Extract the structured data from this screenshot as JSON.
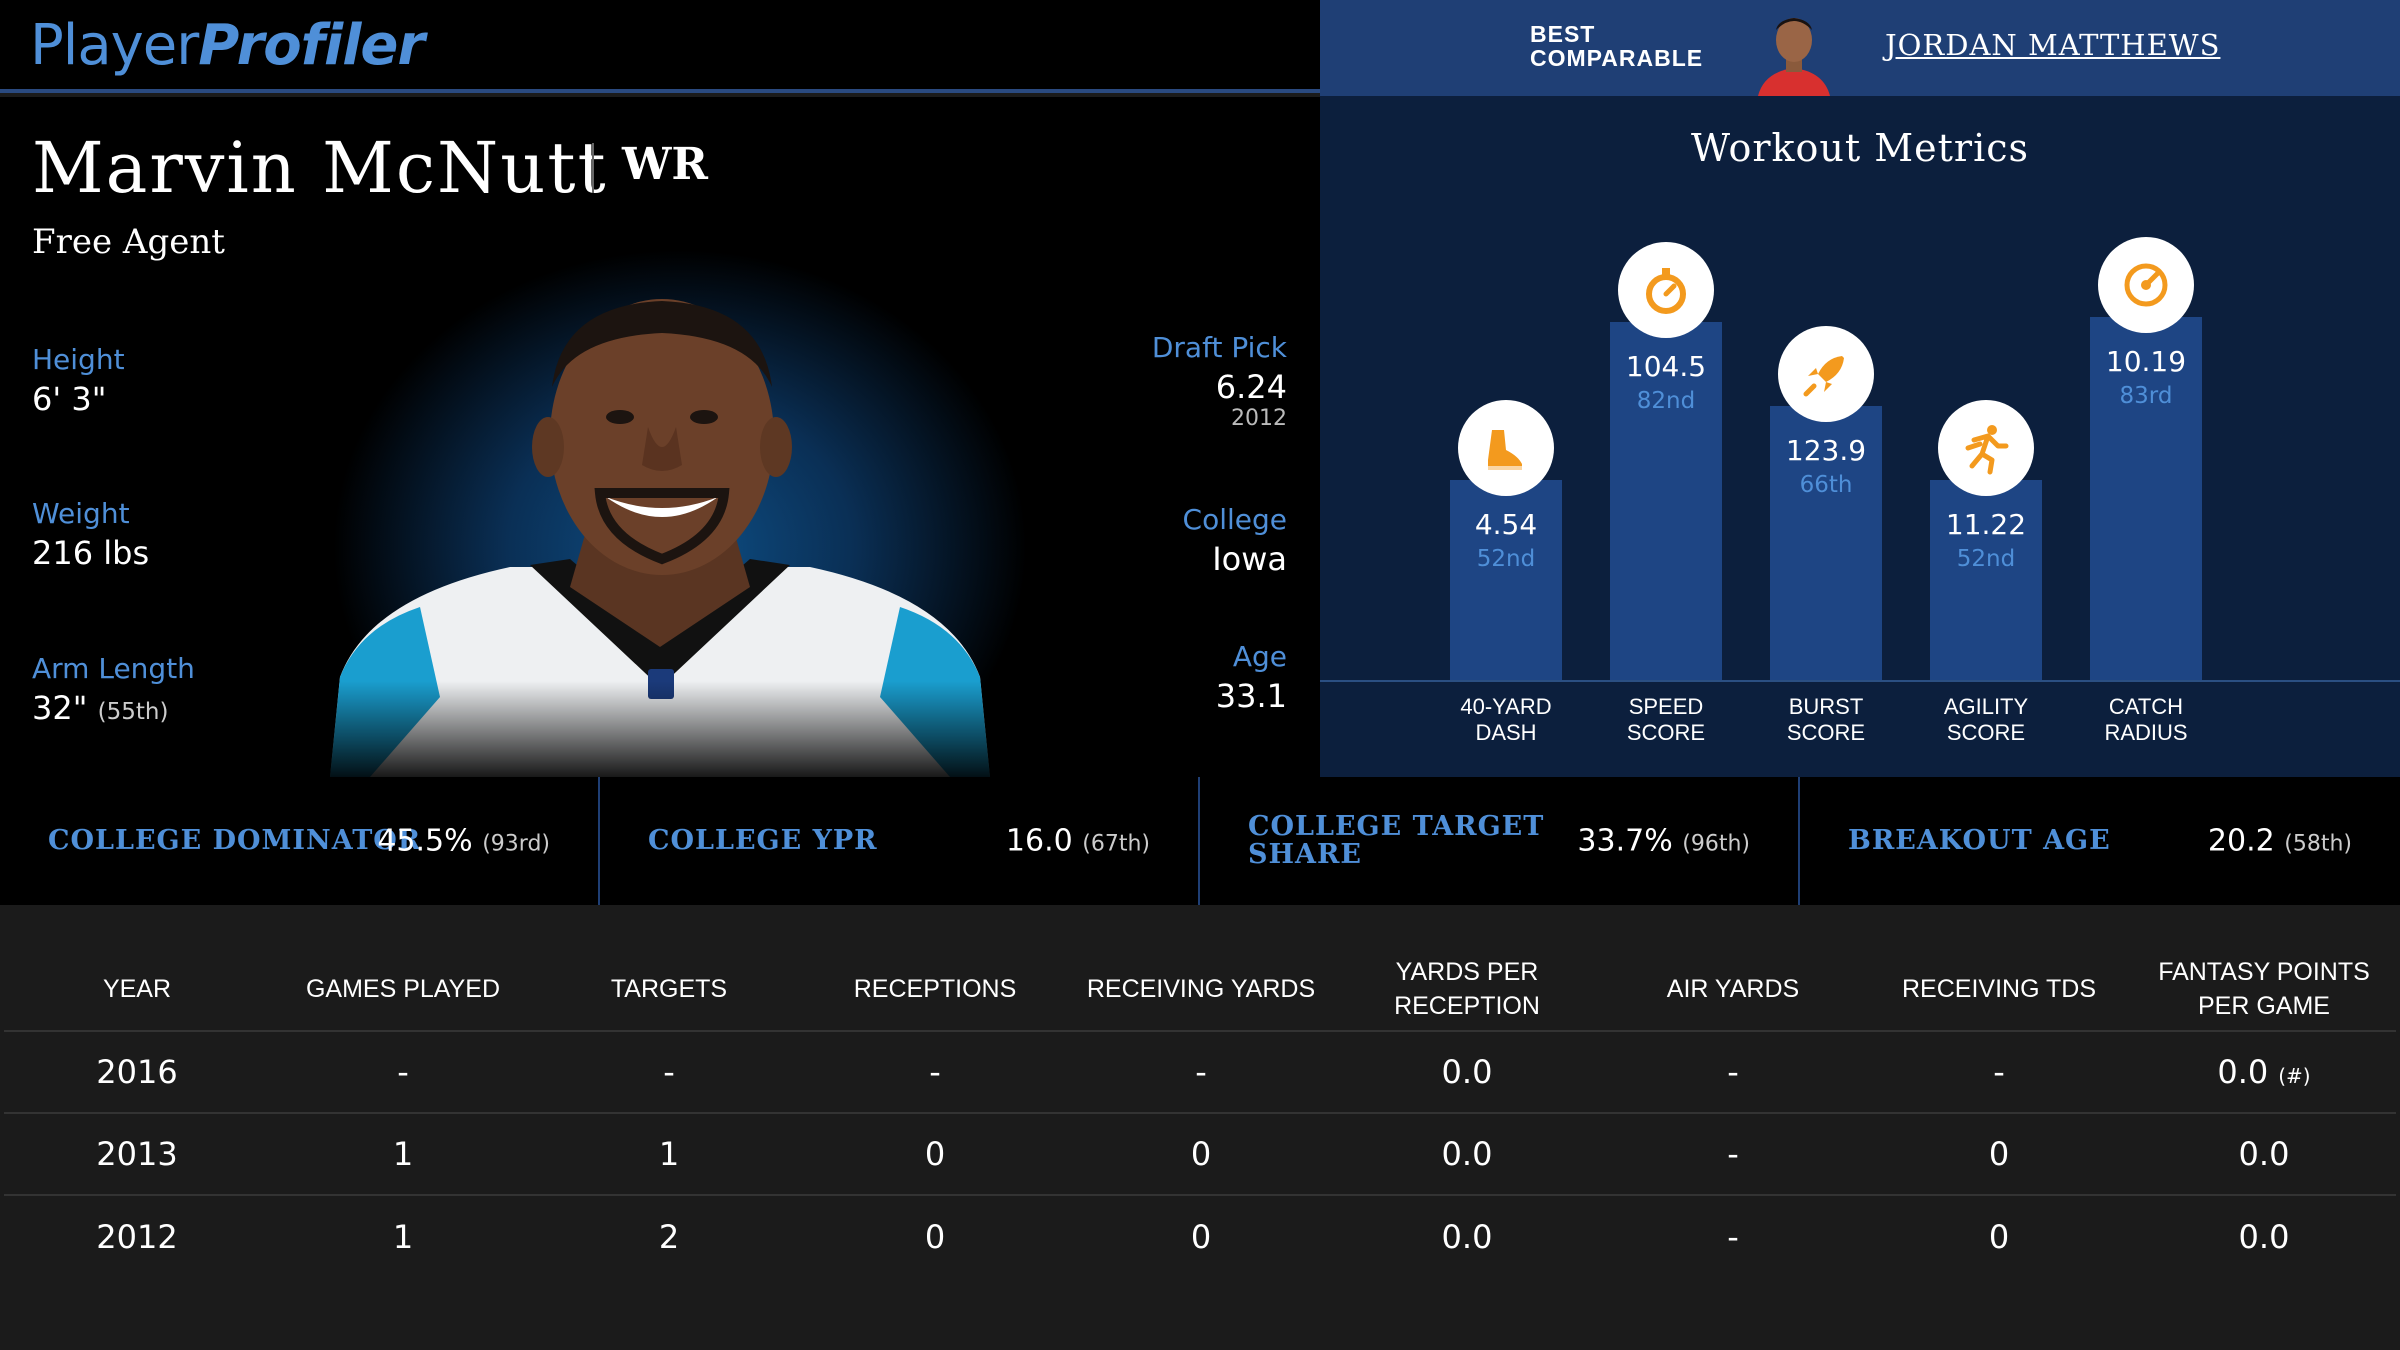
{
  "header": {
    "logo_part1": "Player",
    "logo_part2": "Profiler",
    "comparable_label_line1": "BEST",
    "comparable_label_line2": "COMPARABLE",
    "comparable_name": "JORDAN MATTHEWS"
  },
  "player": {
    "name": "Marvin McNutt",
    "position": "WR",
    "team": "Free Agent",
    "height_label": "Height",
    "height": "6' 3\"",
    "weight_label": "Weight",
    "weight": "216 lbs",
    "arm_label": "Arm Length",
    "arm": "32\"",
    "arm_pct": "(55th)",
    "draft_label": "Draft Pick",
    "draft": "6.24",
    "draft_year": "2012",
    "college_label": "College",
    "college": "Iowa",
    "age_label": "Age",
    "age": "33.1"
  },
  "workout": {
    "title": "Workout Metrics",
    "metrics": [
      {
        "value": "4.54",
        "pct": "52nd",
        "label1": "40-YARD",
        "label2": "DASH",
        "icon": "shoe-icon",
        "percentile": 52
      },
      {
        "value": "104.5",
        "pct": "82nd",
        "label1": "SPEED",
        "label2": "SCORE",
        "icon": "stopwatch-icon",
        "percentile": 82
      },
      {
        "value": "123.9",
        "pct": "66th",
        "label1": "BURST",
        "label2": "SCORE",
        "icon": "rocket-icon",
        "percentile": 66
      },
      {
        "value": "11.22",
        "pct": "52nd",
        "label1": "AGILITY",
        "label2": "SCORE",
        "icon": "runner-icon",
        "percentile": 52
      },
      {
        "value": "10.19",
        "pct": "83rd",
        "label1": "CATCH",
        "label2": "RADIUS",
        "icon": "target-icon",
        "percentile": 83
      }
    ]
  },
  "college": [
    {
      "label": "COLLEGE DOMINATOR",
      "value": "45.5%",
      "pct": "(93rd)"
    },
    {
      "label": "COLLEGE YPR",
      "value": "16.0",
      "pct": "(67th)"
    },
    {
      "label_line1": "COLLEGE TARGET",
      "label_line2": "SHARE",
      "value": "33.7%",
      "pct": "(96th)"
    },
    {
      "label": "BREAKOUT AGE",
      "value": "20.2",
      "pct": "(58th)"
    }
  ],
  "table": {
    "headers": [
      "YEAR",
      "GAMES PLAYED",
      "TARGETS",
      "RECEPTIONS",
      "RECEIVING YARDS",
      "YARDS PER RECEPTION",
      "AIR YARDS",
      "RECEIVING TDS",
      "FANTASY POINTS PER GAME"
    ],
    "rows": [
      [
        "2016",
        "-",
        "-",
        "-",
        "-",
        "0.0",
        "-",
        "-",
        "0.0"
      ],
      [
        "2013",
        "1",
        "1",
        "0",
        "0",
        "0.0",
        "-",
        "0",
        "0.0"
      ],
      [
        "2012",
        "1",
        "2",
        "0",
        "0",
        "0.0",
        "-",
        "0",
        "0.0"
      ]
    ],
    "footnote": "(#)"
  },
  "colors": {
    "accent_blue": "#4f8fd8",
    "bar_blue": "#1e4584",
    "header_blue": "#1f3f75",
    "icon_orange": "#f39a1e"
  }
}
